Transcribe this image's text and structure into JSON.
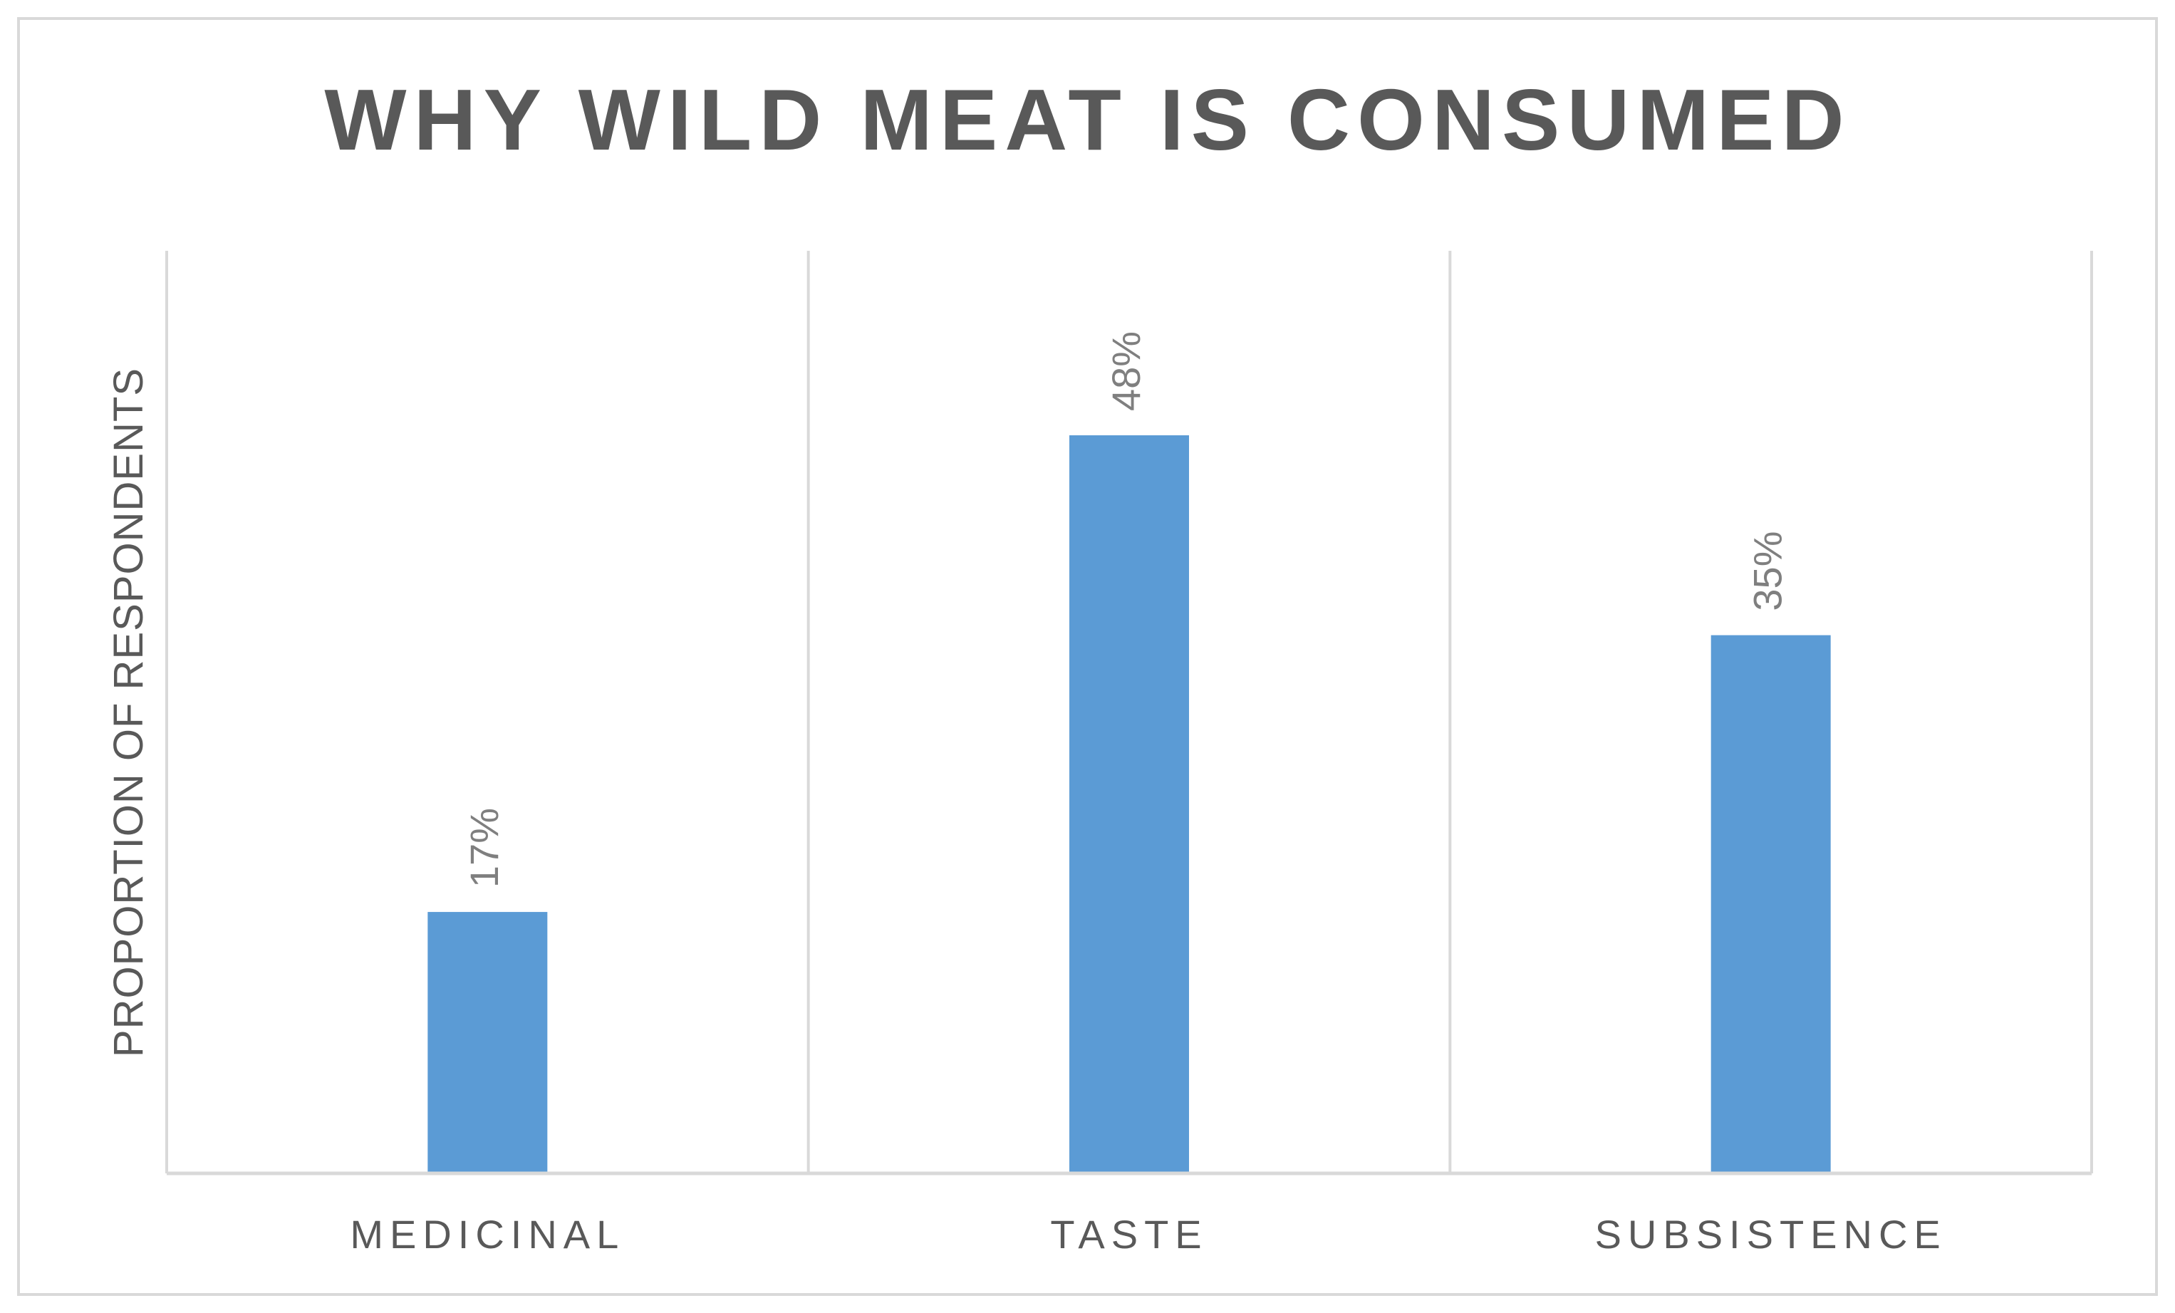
{
  "chart_data": {
    "type": "bar",
    "title": "WHY WILD MEAT IS CONSUMED",
    "xlabel": "",
    "ylabel": "PROPORTION OF RESPONDENTS",
    "categories": [
      "MEDICINAL",
      "TASTE",
      "SUBSISTENCE"
    ],
    "values": [
      17,
      48,
      35
    ],
    "data_labels": [
      "17%",
      "48%",
      "35%"
    ],
    "unit": "%",
    "ylim": [
      0,
      60
    ],
    "grid": "vertical",
    "legend": "none",
    "colors": {
      "bar": "#5B9BD5",
      "title": "#595959",
      "text": "#595959",
      "data_label": "#7F7F7F",
      "grid": "#D9D9D9",
      "border": "#D9D9D9"
    }
  }
}
